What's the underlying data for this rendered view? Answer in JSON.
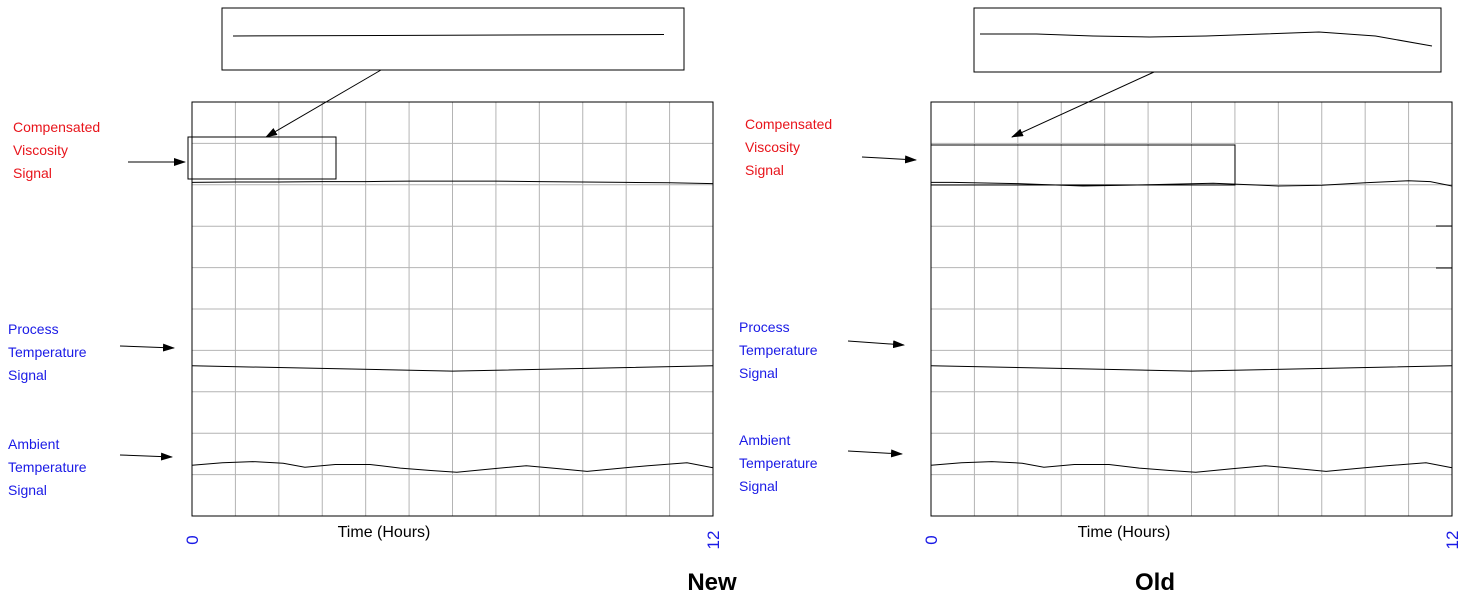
{
  "chart_data": [
    {
      "type": "line",
      "title": "New",
      "xlabel": "Time (Hours)",
      "x_ticks": [
        "0",
        "12"
      ],
      "xlim": [
        0,
        12
      ],
      "grid": true,
      "signal_labels": {
        "viscosity": [
          "Compensated",
          "Viscosity",
          "Signal"
        ],
        "process": [
          "Process",
          "Temperature",
          "Signal"
        ],
        "ambient": [
          "Ambient",
          "Temperature",
          "Signal"
        ]
      },
      "series": [
        {
          "key": "viscosity",
          "x": [
            0,
            1,
            2,
            3,
            4,
            5,
            6,
            7,
            8,
            9,
            10,
            11,
            12
          ],
          "y": [
            8.22,
            8.23,
            8.23,
            8.24,
            8.24,
            8.25,
            8.25,
            8.25,
            8.24,
            8.23,
            8.22,
            8.21,
            8.19
          ]
        },
        {
          "key": "process",
          "x": [
            0,
            6,
            12
          ],
          "y": [
            3.7,
            3.57,
            3.7
          ]
        },
        {
          "key": "ambient",
          "x": [
            0,
            0.7,
            1.4,
            2.1,
            2.6,
            3.3,
            4.1,
            4.8,
            5.5,
            6.1,
            6.9,
            7.7,
            8.4,
            9.1,
            9.8,
            10.5,
            11.4,
            12
          ],
          "y": [
            1.25,
            1.31,
            1.34,
            1.3,
            1.2,
            1.27,
            1.27,
            1.18,
            1.12,
            1.08,
            1.16,
            1.24,
            1.17,
            1.1,
            1.17,
            1.24,
            1.31,
            1.19
          ]
        }
      ],
      "zoom_series": {
        "x": [
          0,
          12
        ],
        "y": [
          0,
          0.05
        ]
      }
    },
    {
      "type": "line",
      "title": "Old",
      "xlabel": "Time (Hours)",
      "x_ticks": [
        "0",
        "12"
      ],
      "xlim": [
        0,
        12
      ],
      "grid": true,
      "signal_labels": {
        "viscosity": [
          "Compensated",
          "Viscosity",
          "Signal"
        ],
        "process": [
          "Process",
          "Temperature",
          "Signal"
        ],
        "ambient": [
          "Ambient",
          "Temperature",
          "Signal"
        ]
      },
      "series": [
        {
          "key": "viscosity",
          "x": [
            0,
            0.5,
            2,
            3.5,
            5,
            6.5,
            8,
            9,
            10,
            11,
            11.5,
            12
          ],
          "y": [
            8.22,
            8.22,
            8.19,
            8.13,
            8.16,
            8.2,
            8.13,
            8.15,
            8.21,
            8.26,
            8.24,
            8.13
          ]
        },
        {
          "key": "process",
          "x": [
            0,
            6,
            12
          ],
          "y": [
            3.7,
            3.57,
            3.7
          ]
        },
        {
          "key": "ambient",
          "x": [
            0,
            0.7,
            1.4,
            2.1,
            2.6,
            3.3,
            4.1,
            4.8,
            5.5,
            6.1,
            6.9,
            7.7,
            8.4,
            9.1,
            9.8,
            10.5,
            11.4,
            12
          ],
          "y": [
            1.25,
            1.31,
            1.34,
            1.3,
            1.2,
            1.27,
            1.27,
            1.18,
            1.12,
            1.08,
            1.16,
            1.24,
            1.17,
            1.1,
            1.17,
            1.24,
            1.31,
            1.19
          ]
        }
      ],
      "zoom_series": {
        "x": [
          0,
          1.5,
          3,
          4.5,
          6,
          7.5,
          9,
          10.5,
          12
        ],
        "y": [
          0.2,
          0.2,
          0.1,
          0.05,
          0.1,
          0.2,
          0.3,
          0.1,
          -0.4
        ]
      }
    }
  ]
}
